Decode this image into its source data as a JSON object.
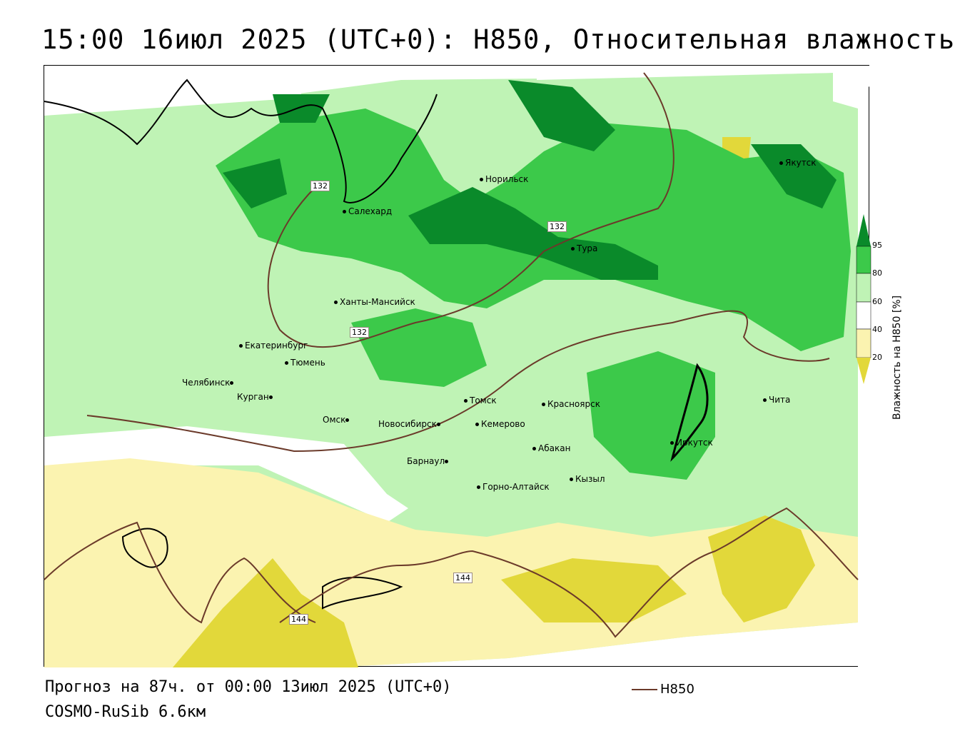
{
  "header": {
    "title": "15:00 16июл 2025 (UTC+0): H850, Относительная влажность"
  },
  "map": {
    "cities": [
      {
        "id": "norilsk",
        "name": "Норильск"
      },
      {
        "id": "yakutsk",
        "name": "Якутск"
      },
      {
        "id": "salekhard",
        "name": "Салехард"
      },
      {
        "id": "tura",
        "name": "Тура"
      },
      {
        "id": "khanty",
        "name": "Ханты-Мансийск"
      },
      {
        "id": "ekb",
        "name": "Екатеринбург"
      },
      {
        "id": "tyumen",
        "name": "Тюмень"
      },
      {
        "id": "chelyabinsk",
        "name": "Челябинск"
      },
      {
        "id": "kurgan",
        "name": "Курган"
      },
      {
        "id": "omsk",
        "name": "Омск"
      },
      {
        "id": "tomsk",
        "name": "Томск"
      },
      {
        "id": "krasnoyarsk",
        "name": "Красноярск"
      },
      {
        "id": "chita",
        "name": "Чита"
      },
      {
        "id": "novosibirsk",
        "name": "Новосибирск"
      },
      {
        "id": "kemerovo",
        "name": "Кемерово"
      },
      {
        "id": "abakan",
        "name": "Абакан"
      },
      {
        "id": "irkutsk",
        "name": "Иркутск"
      },
      {
        "id": "barnaul",
        "name": "Барнаул"
      },
      {
        "id": "kyzyl",
        "name": "Кызыл"
      },
      {
        "id": "gorno",
        "name": "Горно-Алтайск"
      }
    ],
    "contour_labels": [
      "132",
      "132",
      "132",
      "144",
      "144"
    ],
    "contour_color": "#6b3a2a",
    "colors": {
      "humidity_95": "#0a8a2a",
      "humidity_80": "#3cc94a",
      "humidity_60": "#bff3b5",
      "humidity_40": "#ffffff",
      "humidity_20": "#fbf3b0",
      "humidity_low": "#e2d83a"
    }
  },
  "legend": {
    "ticks": [
      "95",
      "80",
      "60",
      "40",
      "20"
    ],
    "axis_label": "Влажность на H850 [%]"
  },
  "footer": {
    "forecast": "Прогноз на 87ч. от 00:00 13июл 2025 (UTC+0)",
    "model": "COSMO-RuSib 6.6км",
    "line_legend": "H850"
  }
}
